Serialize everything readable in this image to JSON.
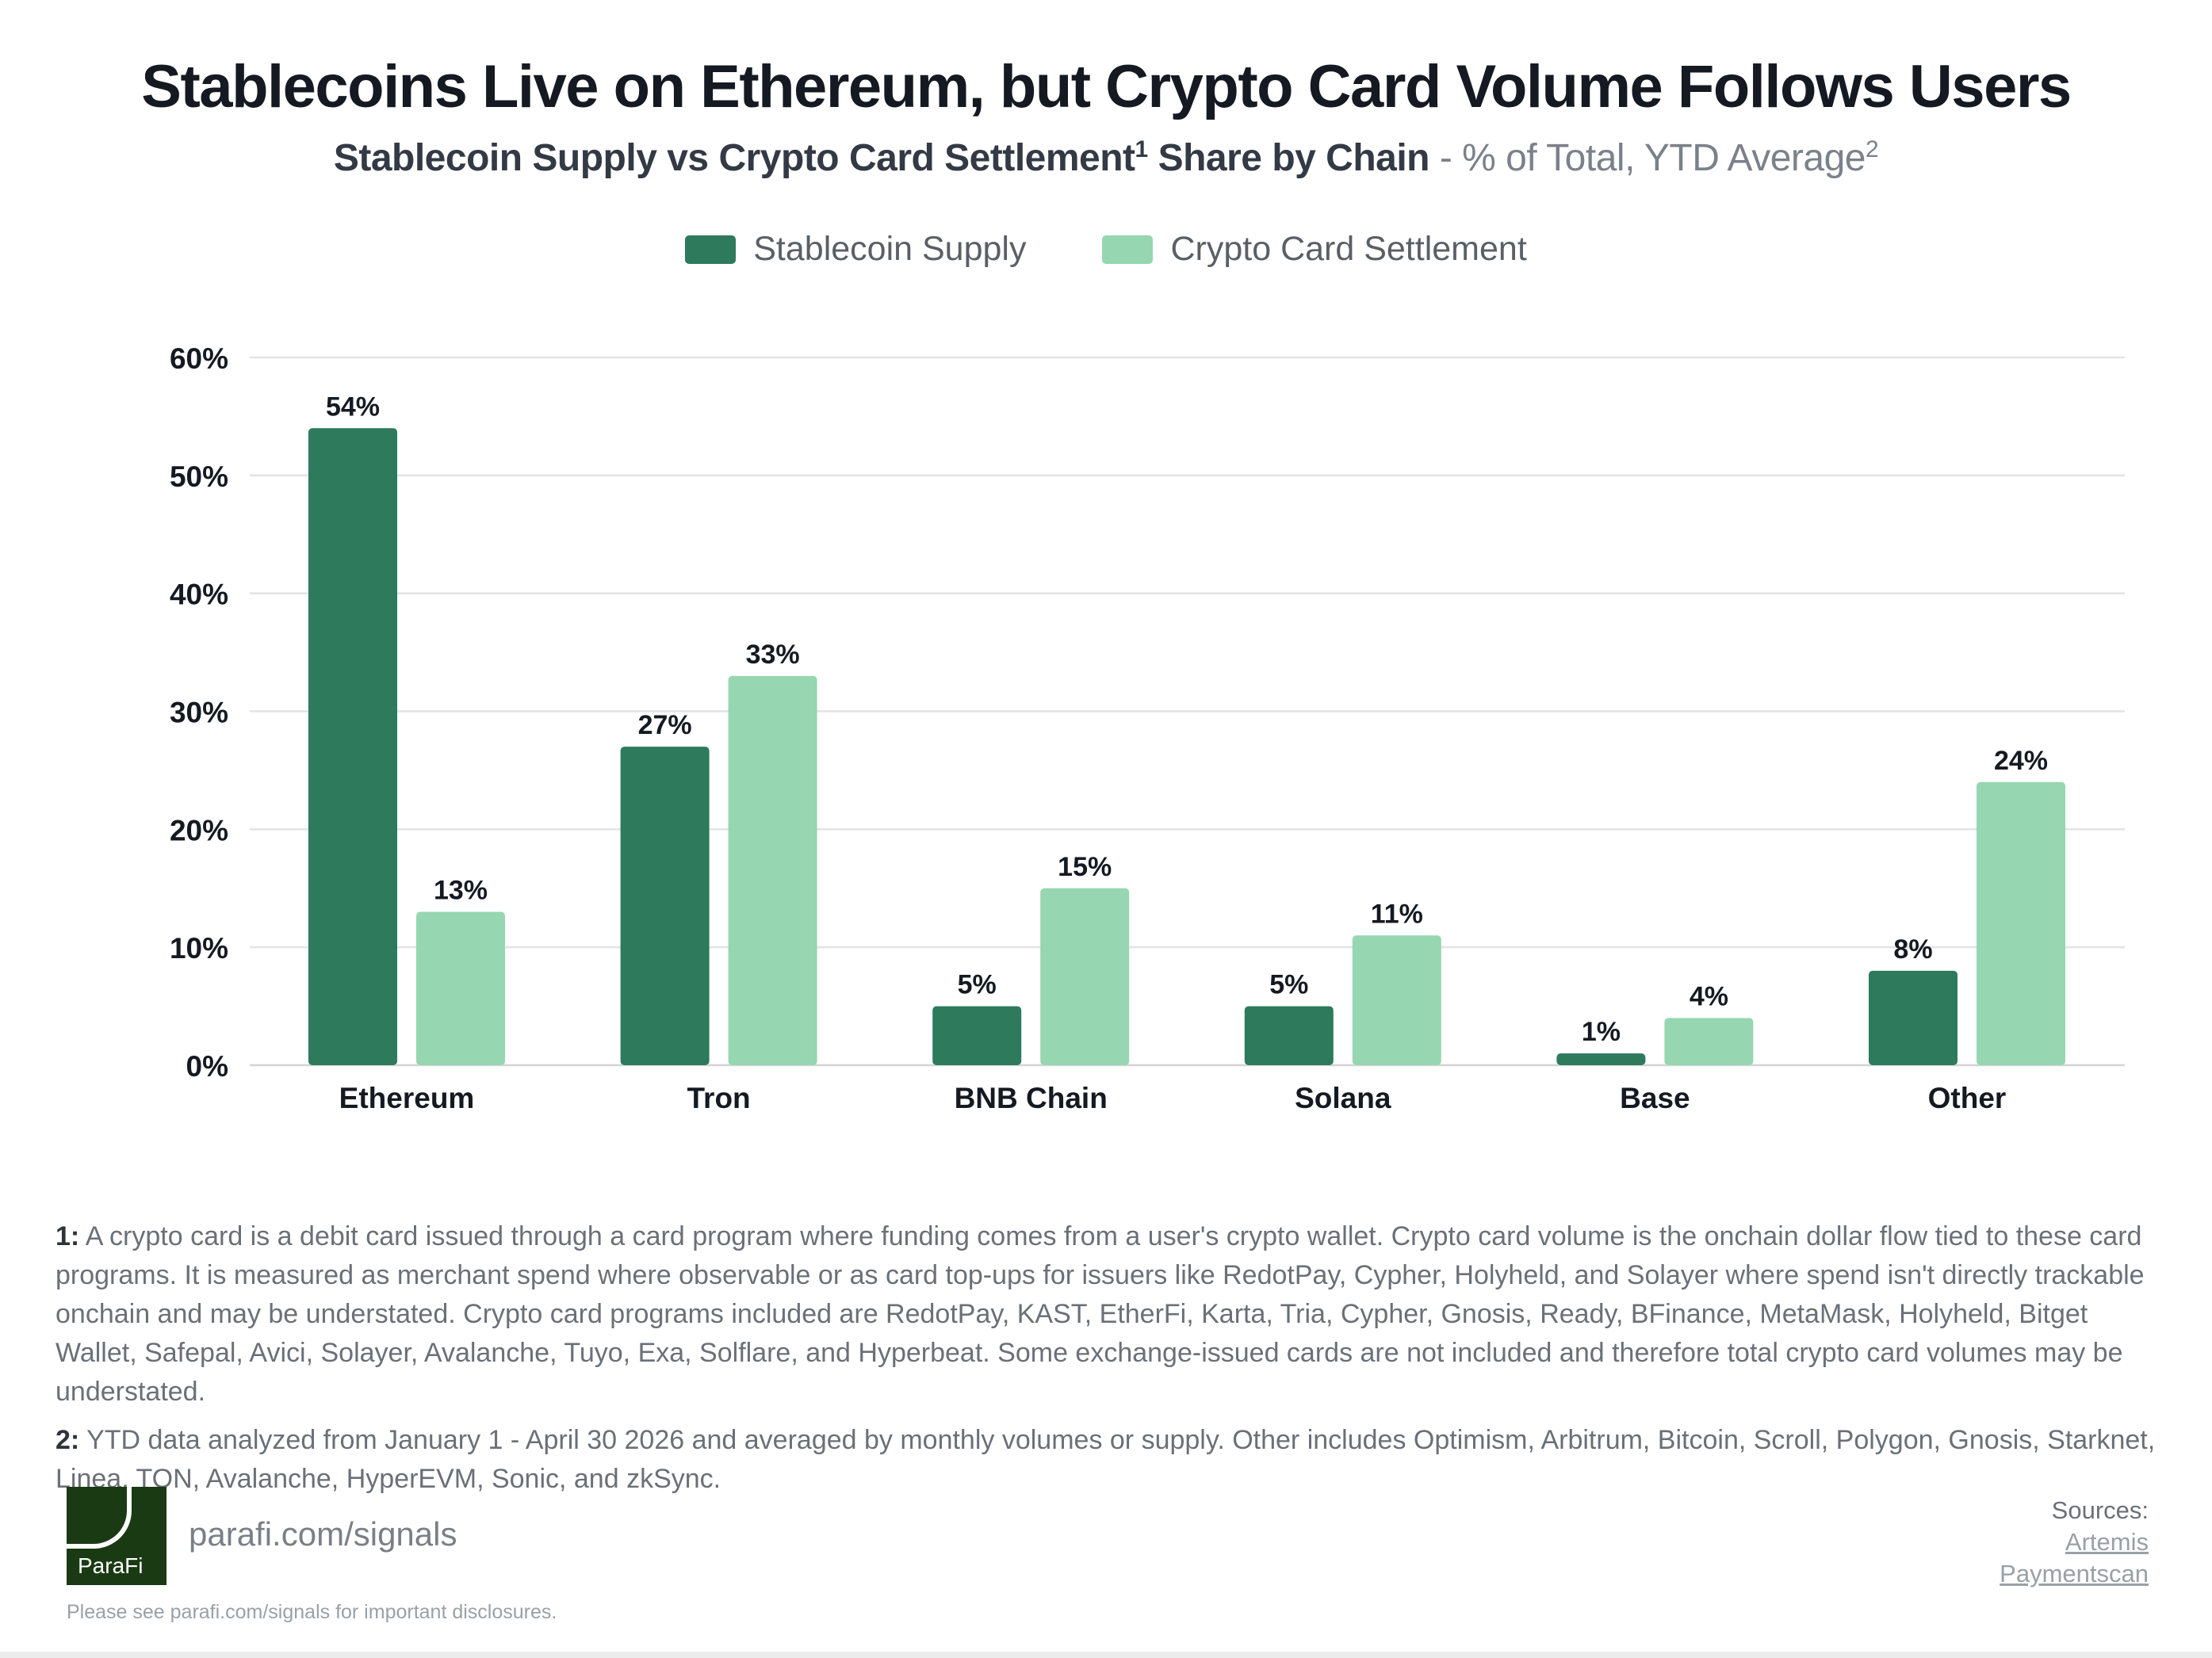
{
  "title": "Stablecoins Live on Ethereum, but Crypto Card Volume Follows Users",
  "subtitle": {
    "part1": "Stablecoin Supply vs Crypto Card Settlement",
    "sup1": "1",
    "part2": " Share by Chain",
    "part3": " - % of Total, YTD Average",
    "sup2": "2"
  },
  "colors": {
    "stablecoin": "#2e7a5c",
    "card": "#96d6b0",
    "grid": "#e3e3e3",
    "text": "#151a22"
  },
  "chart_data": {
    "type": "bar",
    "categories": [
      "Ethereum",
      "Tron",
      "BNB Chain",
      "Solana",
      "Base",
      "Other"
    ],
    "series": [
      {
        "name": "Stablecoin Supply",
        "values": [
          54,
          27,
          5,
          5,
          1,
          8
        ]
      },
      {
        "name": "Crypto Card Settlement",
        "values": [
          13,
          33,
          15,
          11,
          4,
          24
        ]
      }
    ],
    "data_labels": [
      [
        "54%",
        "27%",
        "5%",
        "5%",
        "1%",
        "8%"
      ],
      [
        "13%",
        "33%",
        "15%",
        "11%",
        "4%",
        "24%"
      ]
    ],
    "ylim": [
      0,
      60
    ],
    "yticks": [
      0,
      10,
      20,
      30,
      40,
      50,
      60
    ],
    "ytick_labels": [
      "0%",
      "10%",
      "20%",
      "30%",
      "40%",
      "50%",
      "60%"
    ],
    "grid": true,
    "legend_position": "top-center"
  },
  "footnotes": {
    "note1_label": "1:",
    "note1_text": " A crypto card is a debit card issued through a card program where funding comes from a user's crypto wallet. Crypto card volume is the onchain dollar flow tied to these card programs. It is measured as merchant spend where observable or as card top-ups for issuers like RedotPay, Cypher, Holyheld, and Solayer where spend isn't directly trackable onchain and may be understated. Crypto card programs included are RedotPay, KAST, EtherFi, Karta, Tria, Cypher, Gnosis, Ready, BFinance, MetaMask, Holyheld, Bitget Wallet, Safepal, Avici, Solayer, Avalanche, Tuyo, Exa, Solflare, and Hyperbeat. Some exchange-issued cards are not included and therefore total crypto card volumes may be understated.",
    "note2_label": "2:",
    "note2_text": " YTD data analyzed from January 1 - April 30 2026 and averaged by monthly volumes or supply. Other includes Optimism, Arbitrum, Bitcoin, Scroll, Polygon, Gnosis, Starknet, Linea, TON, Avalanche, HyperEVM, Sonic, and zkSync."
  },
  "footer": {
    "logo_text": "ParaFi",
    "url": "parafi.com/signals",
    "disclaimer": "Please see parafi.com/signals for important disclosures.",
    "sources_label": "Sources:",
    "sources": [
      "Artemis",
      "Paymentscan"
    ]
  }
}
